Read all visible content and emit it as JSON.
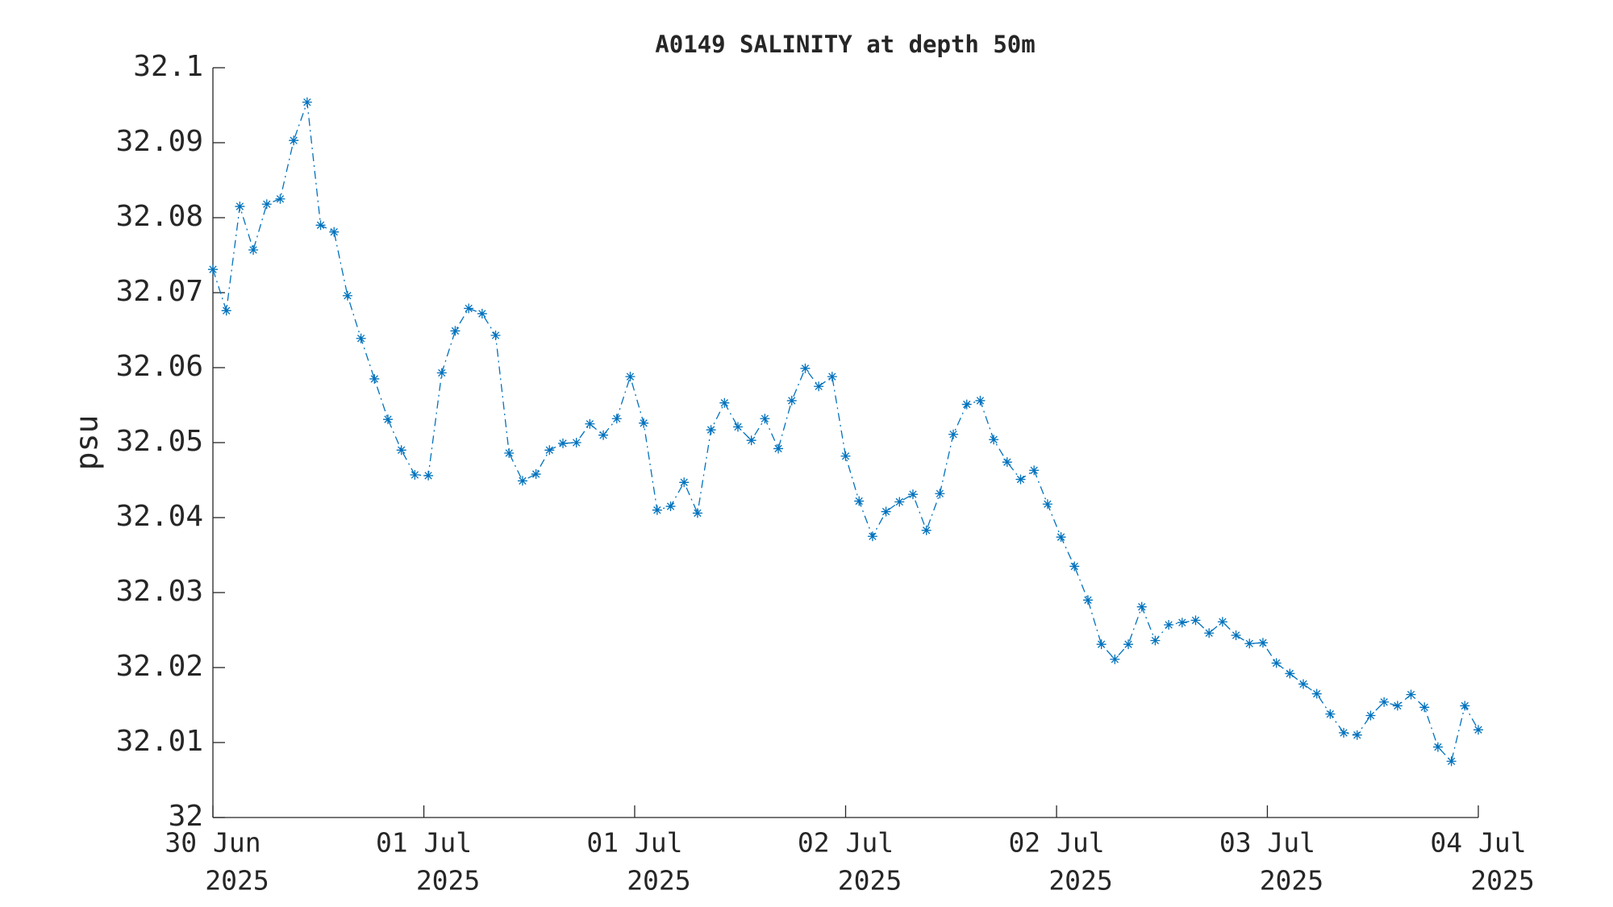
{
  "chart_data": {
    "type": "line",
    "title": "A0149 SALINITY at depth 50m",
    "ylabel": "psu",
    "x": [
      0,
      1,
      2,
      3,
      4,
      5,
      6,
      7,
      8,
      9,
      10,
      11,
      12,
      13,
      14,
      15,
      16,
      17,
      18,
      19,
      20,
      21,
      22,
      23,
      24,
      25,
      26,
      27,
      28,
      29,
      30,
      31,
      32,
      33,
      34,
      35,
      36,
      37,
      38,
      39,
      40,
      41,
      42,
      43,
      44,
      45,
      46,
      47,
      48,
      49,
      50,
      51,
      52,
      53,
      54,
      55,
      56,
      57,
      58,
      59,
      60,
      61,
      62,
      63,
      64,
      65,
      66,
      67,
      68,
      69,
      70,
      71,
      72,
      73,
      74,
      75,
      76,
      77,
      78,
      79,
      80,
      81,
      82,
      83,
      84,
      85,
      86,
      87,
      88,
      89,
      90,
      91,
      92,
      93,
      94
    ],
    "series": [
      {
        "name": "SALINITY",
        "color": "#0072bd",
        "values": [
          32.0731,
          32.0676,
          32.0815,
          32.0757,
          32.0818,
          32.0825,
          32.0903,
          32.0954,
          32.079,
          32.0781,
          32.0696,
          32.0639,
          32.0585,
          32.0531,
          32.049,
          32.0457,
          32.0456,
          32.0593,
          32.0649,
          32.0679,
          32.0672,
          32.0643,
          32.0486,
          32.0449,
          32.0458,
          32.049,
          32.0499,
          32.05,
          32.0525,
          32.051,
          32.0532,
          32.0588,
          32.0526,
          32.041,
          32.0415,
          32.0447,
          32.0406,
          32.0517,
          32.0553,
          32.0521,
          32.0503,
          32.0532,
          32.0492,
          32.0556,
          32.0599,
          32.0575,
          32.0588,
          32.0482,
          32.0422,
          32.0375,
          32.0408,
          32.0421,
          32.0431,
          32.0383,
          32.0432,
          32.0511,
          32.0551,
          32.0556,
          32.0504,
          32.0474,
          32.0451,
          32.0463,
          32.0418,
          32.0374,
          32.0335,
          32.029,
          32.0231,
          32.0211,
          32.0231,
          32.0281,
          32.0236,
          32.0257,
          32.026,
          32.0263,
          32.0246,
          32.0261,
          32.0243,
          32.0232,
          32.0233,
          32.0206,
          32.0192,
          32.0178,
          32.0165,
          32.0138,
          32.0113,
          32.011,
          32.0136,
          32.0154,
          32.0149,
          32.0164,
          32.0147,
          32.0094,
          32.0075,
          32.0149,
          32.0117
        ]
      }
    ],
    "xlim": [
      0,
      94
    ],
    "xticks": [
      {
        "value": 0,
        "label": [
          "30 Jun",
          "2025"
        ]
      },
      {
        "value": 15.67,
        "label": [
          "01 Jul",
          "2025"
        ]
      },
      {
        "value": 31.33,
        "label": [
          "01 Jul",
          "2025"
        ]
      },
      {
        "value": 47,
        "label": [
          "02 Jul",
          "2025"
        ]
      },
      {
        "value": 62.67,
        "label": [
          "02 Jul",
          "2025"
        ]
      },
      {
        "value": 78.33,
        "label": [
          "03 Jul",
          "2025"
        ]
      },
      {
        "value": 94,
        "label": [
          "04 Jul",
          "2025"
        ]
      }
    ],
    "ylim": [
      32,
      32.1
    ],
    "yticks": [
      32,
      32.01,
      32.02,
      32.03,
      32.04,
      32.05,
      32.06,
      32.07,
      32.08,
      32.09,
      32.1
    ]
  }
}
